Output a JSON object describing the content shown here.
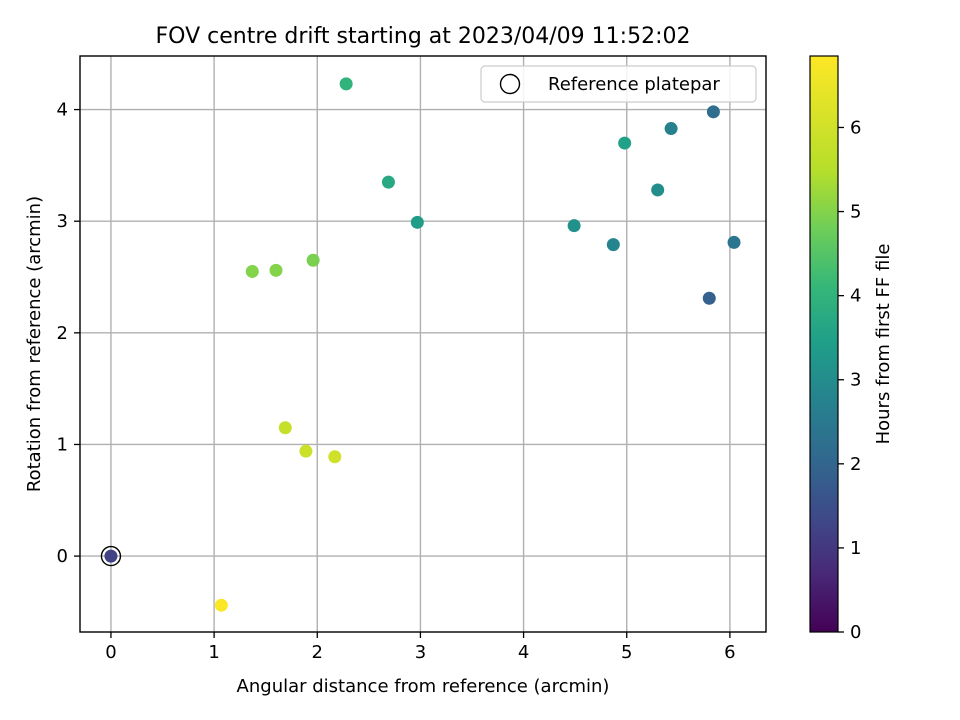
{
  "chart_data": {
    "type": "scatter",
    "title": "FOV centre drift starting at 2023/04/09 11:52:02",
    "xlabel": "Angular distance from reference (arcmin)",
    "ylabel": "Rotation from reference (arcmin)",
    "xlim": [
      -0.3,
      6.35
    ],
    "ylim": [
      -0.68,
      4.48
    ],
    "xticks": [
      0,
      1,
      2,
      3,
      4,
      5,
      6
    ],
    "yticks": [
      0,
      1,
      2,
      3,
      4
    ],
    "grid": true,
    "legend": {
      "location": "top-right",
      "entries": [
        "Reference platepar"
      ]
    },
    "reference_point": {
      "x": 0,
      "y": 0,
      "label": "Reference platepar"
    },
    "colorbar": {
      "label": "Hours from first FF file",
      "colormap": "viridis",
      "range": [
        0,
        6.85
      ],
      "ticks": [
        0,
        1,
        2,
        3,
        4,
        5,
        6
      ]
    },
    "points": [
      {
        "x": 0.0,
        "y": 0.0,
        "hours": 1.2
      },
      {
        "x": 5.8,
        "y": 2.31,
        "hours": 1.9
      },
      {
        "x": 5.84,
        "y": 3.98,
        "hours": 2.2
      },
      {
        "x": 6.04,
        "y": 2.81,
        "hours": 2.4
      },
      {
        "x": 5.43,
        "y": 3.83,
        "hours": 2.7
      },
      {
        "x": 4.87,
        "y": 2.79,
        "hours": 2.8
      },
      {
        "x": 5.3,
        "y": 3.28,
        "hours": 3.0
      },
      {
        "x": 4.49,
        "y": 2.96,
        "hours": 3.1
      },
      {
        "x": 4.98,
        "y": 3.7,
        "hours": 3.5
      },
      {
        "x": 2.97,
        "y": 2.99,
        "hours": 3.4
      },
      {
        "x": 2.69,
        "y": 3.35,
        "hours": 3.7
      },
      {
        "x": 2.28,
        "y": 4.23,
        "hours": 4.0
      },
      {
        "x": 1.96,
        "y": 2.65,
        "hours": 4.9
      },
      {
        "x": 1.37,
        "y": 2.55,
        "hours": 5.0
      },
      {
        "x": 1.6,
        "y": 2.56,
        "hours": 5.0
      },
      {
        "x": 1.69,
        "y": 1.15,
        "hours": 5.8
      },
      {
        "x": 1.89,
        "y": 0.94,
        "hours": 5.9
      },
      {
        "x": 2.17,
        "y": 0.89,
        "hours": 6.0
      },
      {
        "x": 1.07,
        "y": -0.44,
        "hours": 6.8
      }
    ]
  }
}
